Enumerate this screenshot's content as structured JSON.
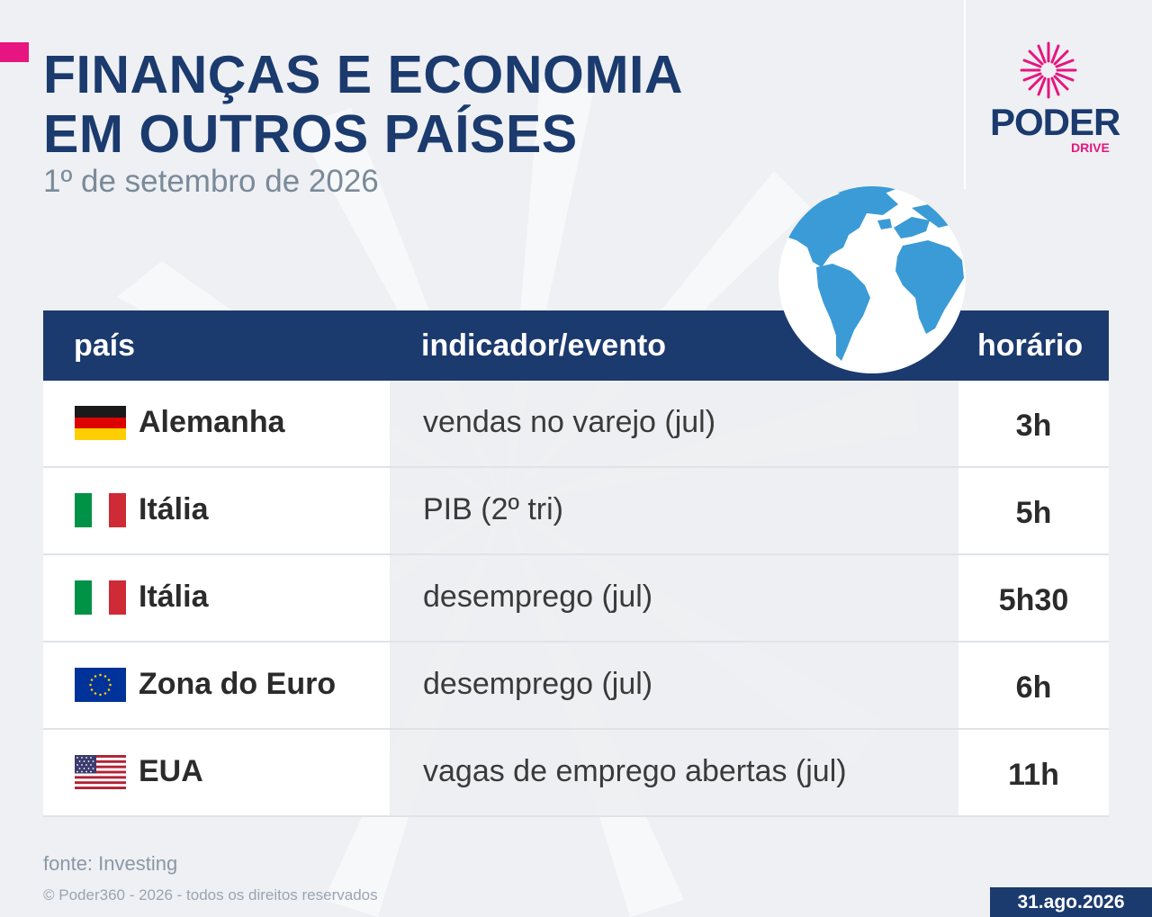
{
  "header": {
    "title_line1": "FINANÇAS E ECONOMIA",
    "title_line2": "EM OUTROS PAÍSES",
    "subtitle": "1º de setembro de 2026"
  },
  "brand": {
    "name": "PODER",
    "sub": "DRIVE",
    "primary_color": "#1b3a6e",
    "accent_color": "#e6157f"
  },
  "table": {
    "columns": [
      "país",
      "indicador/evento",
      "horário"
    ],
    "rows": [
      {
        "country": "Alemanha",
        "flag": "germany-flag",
        "indicator": "vendas no varejo (jul)",
        "time": "3h"
      },
      {
        "country": "Itália",
        "flag": "italy-flag",
        "indicator": "PIB (2º tri)",
        "time": "5h"
      },
      {
        "country": "Itália",
        "flag": "italy-flag",
        "indicator": "desemprego (jul)",
        "time": "5h30"
      },
      {
        "country": "Zona do Euro",
        "flag": "eu-flag",
        "indicator": "desemprego (jul)",
        "time": "6h"
      },
      {
        "country": "EUA",
        "flag": "usa-flag",
        "indicator": "vagas de emprego abertas (jul)",
        "time": "11h"
      }
    ]
  },
  "footer": {
    "source": "fonte: Investing",
    "copyright": "© Poder360 - 2026 - todos os direitos reservados",
    "date_badge": "31.ago.2026"
  },
  "icons": {
    "globe": "globe-icon",
    "logo": "sunburst-logo-icon"
  }
}
